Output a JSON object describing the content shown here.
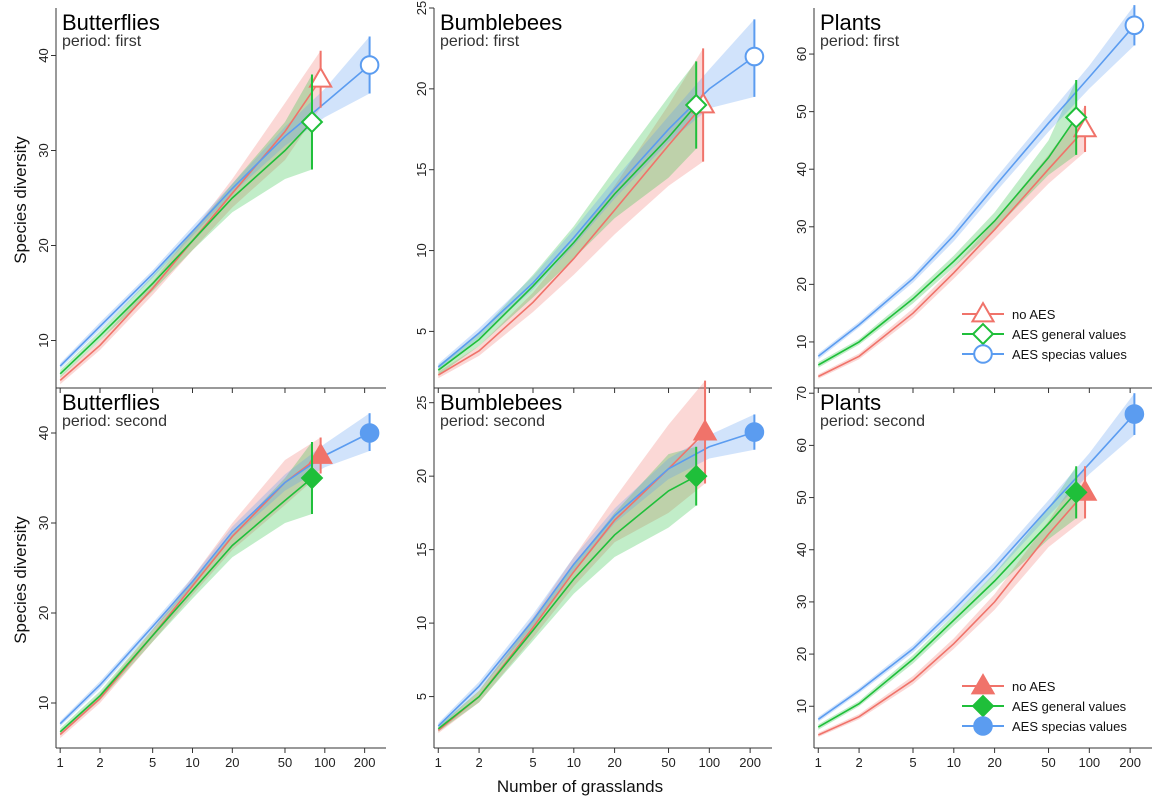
{
  "figure": {
    "xlabel": "Number of grasslands",
    "ylabel": "Species diversity",
    "colors": {
      "no_aes": "#f0736a",
      "aes_general": "#1fbf3a",
      "aes_special": "#5b9cf0"
    }
  },
  "legend_first": [
    {
      "label": "no AES",
      "marker": "triangle-open",
      "color": "#f0736a"
    },
    {
      "label": "AES general values",
      "marker": "diamond-open",
      "color": "#1fbf3a"
    },
    {
      "label": "AES specias values",
      "marker": "circle-open",
      "color": "#5b9cf0"
    }
  ],
  "legend_second": [
    {
      "label": "no AES",
      "marker": "triangle-filled",
      "color": "#f0736a"
    },
    {
      "label": "AES general values",
      "marker": "diamond-filled",
      "color": "#1fbf3a"
    },
    {
      "label": "AES specias values",
      "marker": "circle-filled",
      "color": "#5b9cf0"
    }
  ],
  "chart_data": [
    {
      "type": "line",
      "title": "Butterflies",
      "subtitle": "period: first",
      "xscale": "log",
      "xticks": [
        1,
        2,
        5,
        10,
        20,
        50,
        100,
        200
      ],
      "ylim": [
        5,
        45
      ],
      "yticks": [
        10,
        20,
        30,
        40
      ],
      "series": [
        {
          "name": "no AES",
          "x": [
            1,
            2,
            5,
            10,
            20,
            50,
            93
          ],
          "y": [
            5.8,
            9.5,
            15.5,
            20.5,
            25.5,
            32,
            37.5
          ],
          "lower": [
            5.4,
            9,
            14.8,
            19.5,
            24,
            29,
            34.5
          ],
          "upper": [
            6.2,
            10,
            16.2,
            21.5,
            27,
            35,
            40.5
          ],
          "endpoint": {
            "x": 93,
            "y": 37.5,
            "low": 34.5,
            "high": 40.5
          }
        },
        {
          "name": "AES general values",
          "x": [
            1,
            2,
            5,
            10,
            20,
            50,
            80
          ],
          "y": [
            6.5,
            10.5,
            16,
            20.5,
            25,
            30,
            33
          ],
          "lower": [
            6.1,
            10,
            15.2,
            19.5,
            23.5,
            27,
            28
          ],
          "upper": [
            6.9,
            11,
            16.8,
            21.5,
            26.5,
            33,
            38
          ],
          "endpoint": {
            "x": 80,
            "y": 33,
            "low": 28,
            "high": 38
          }
        },
        {
          "name": "AES specias values",
          "x": [
            1,
            2,
            5,
            10,
            20,
            50,
            100,
            218
          ],
          "y": [
            7.3,
            11.5,
            17,
            21.5,
            26,
            31.5,
            35,
            39
          ],
          "lower": [
            7,
            11.1,
            16.6,
            21,
            25.5,
            30.5,
            33.5,
            36
          ],
          "upper": [
            7.6,
            11.9,
            17.4,
            22,
            26.5,
            32.5,
            36.5,
            42
          ],
          "endpoint": {
            "x": 218,
            "y": 39,
            "low": 36,
            "high": 42
          }
        }
      ]
    },
    {
      "type": "line",
      "title": "Bumblebees",
      "subtitle": "period: first",
      "xscale": "log",
      "xticks": [
        1,
        2,
        5,
        10,
        20,
        50,
        100,
        200
      ],
      "ylim": [
        1.5,
        25
      ],
      "yticks": [
        5,
        10,
        15,
        20,
        25
      ],
      "series": [
        {
          "name": "no AES",
          "x": [
            1,
            2,
            5,
            10,
            20,
            50,
            90
          ],
          "y": [
            2.3,
            3.8,
            6.8,
            9.5,
            12.5,
            16.5,
            19
          ],
          "lower": [
            2.1,
            3.5,
            6.2,
            8.5,
            11,
            14,
            15.5
          ],
          "upper": [
            2.5,
            4.1,
            7.4,
            10.5,
            14,
            19,
            22.5
          ],
          "endpoint": {
            "x": 90,
            "y": 19,
            "low": 15.5,
            "high": 22.5
          }
        },
        {
          "name": "AES general values",
          "x": [
            1,
            2,
            5,
            10,
            20,
            50,
            80
          ],
          "y": [
            2.6,
            4.5,
            7.8,
            10.5,
            13.5,
            17,
            19
          ],
          "lower": [
            2.3,
            4.1,
            7.1,
            9.5,
            12,
            14.5,
            16.3
          ],
          "upper": [
            2.9,
            4.9,
            8.5,
            11.5,
            15,
            19.5,
            21.7
          ],
          "endpoint": {
            "x": 80,
            "y": 19,
            "low": 16.3,
            "high": 21.7
          }
        },
        {
          "name": "AES specias values",
          "x": [
            1,
            2,
            5,
            10,
            20,
            50,
            100,
            215
          ],
          "y": [
            2.8,
            4.9,
            8,
            10.8,
            13.8,
            17.5,
            20,
            22
          ],
          "lower": [
            2.6,
            4.6,
            7.6,
            10.3,
            13.2,
            16.7,
            18.8,
            19.5
          ],
          "upper": [
            3,
            5.2,
            8.4,
            11.3,
            14.4,
            18.3,
            21.2,
            24.3
          ],
          "endpoint": {
            "x": 215,
            "y": 22,
            "low": 19.5,
            "high": 24.3
          }
        }
      ]
    },
    {
      "type": "line",
      "title": "Plants",
      "subtitle": "period: first",
      "xscale": "log",
      "xticks": [
        1,
        2,
        5,
        10,
        20,
        50,
        100,
        200
      ],
      "ylim": [
        2,
        68
      ],
      "yticks": [
        10,
        20,
        30,
        40,
        50,
        60
      ],
      "series": [
        {
          "name": "no AES",
          "x": [
            1,
            2,
            5,
            10,
            20,
            50,
            93
          ],
          "y": [
            4,
            7.5,
            15,
            22,
            29.5,
            40,
            47
          ],
          "lower": [
            3.6,
            7,
            14.2,
            21,
            28,
            37.5,
            43
          ],
          "upper": [
            4.4,
            8,
            15.8,
            23,
            31,
            42.5,
            51
          ],
          "endpoint": {
            "x": 93,
            "y": 47,
            "low": 43,
            "high": 51
          }
        },
        {
          "name": "AES general values",
          "x": [
            1,
            2,
            5,
            10,
            20,
            50,
            80
          ],
          "y": [
            6,
            10,
            17.5,
            24,
            31,
            42,
            49
          ],
          "lower": [
            5.5,
            9.5,
            16.7,
            23,
            29.5,
            39,
            42.5
          ],
          "upper": [
            6.5,
            10.5,
            18.3,
            25,
            32.5,
            45,
            55.5
          ],
          "endpoint": {
            "x": 80,
            "y": 49,
            "low": 42.5,
            "high": 55.5
          }
        },
        {
          "name": "AES specias values",
          "x": [
            1,
            2,
            5,
            10,
            20,
            50,
            100,
            215
          ],
          "y": [
            7.5,
            13,
            21,
            28.5,
            37,
            48,
            56,
            65
          ],
          "lower": [
            7,
            12.5,
            20.3,
            27.5,
            35.8,
            46.5,
            54,
            61.5
          ],
          "upper": [
            8,
            13.5,
            21.7,
            29.5,
            38.2,
            49.5,
            58,
            68.5
          ],
          "endpoint": {
            "x": 215,
            "y": 65,
            "low": 61.5,
            "high": 68.5
          }
        }
      ]
    },
    {
      "type": "line",
      "title": "Butterflies",
      "subtitle": "period: second",
      "xscale": "log",
      "xticks": [
        1,
        2,
        5,
        10,
        20,
        50,
        100,
        200
      ],
      "ylim": [
        5,
        45
      ],
      "yticks": [
        10,
        20,
        30,
        40
      ],
      "series": [
        {
          "name": "no AES",
          "x": [
            1,
            2,
            5,
            10,
            20,
            50,
            93
          ],
          "y": [
            6.5,
            10.5,
            17.5,
            23,
            28.5,
            34.5,
            37.5
          ],
          "lower": [
            6.1,
            10,
            16.8,
            22,
            27,
            32,
            35.5
          ],
          "upper": [
            6.9,
            11,
            18.2,
            24,
            30,
            37,
            39.5
          ],
          "endpoint": {
            "x": 93,
            "y": 37.5,
            "low": 35.5,
            "high": 39.5
          }
        },
        {
          "name": "AES general values",
          "x": [
            1,
            2,
            5,
            10,
            20,
            50,
            80
          ],
          "y": [
            6.8,
            10.8,
            17.5,
            22.5,
            27.5,
            32.5,
            35
          ],
          "lower": [
            6.4,
            10.3,
            16.8,
            21.6,
            26.2,
            30,
            31
          ],
          "upper": [
            7.2,
            11.3,
            18.2,
            23.4,
            28.8,
            35,
            39
          ],
          "endpoint": {
            "x": 80,
            "y": 35,
            "low": 31,
            "high": 39
          }
        },
        {
          "name": "AES specias values",
          "x": [
            1,
            2,
            5,
            10,
            20,
            50,
            100,
            218
          ],
          "y": [
            7.7,
            12,
            18.5,
            23.5,
            29,
            34.5,
            37.5,
            40
          ],
          "lower": [
            7.4,
            11.6,
            18.1,
            23,
            28.4,
            33.6,
            36.2,
            38
          ],
          "upper": [
            8,
            12.4,
            18.9,
            24,
            29.6,
            35.4,
            38.8,
            42.2
          ],
          "endpoint": {
            "x": 218,
            "y": 40,
            "low": 38,
            "high": 42.2
          }
        }
      ]
    },
    {
      "type": "line",
      "title": "Bumblebees",
      "subtitle": "period: second",
      "xscale": "log",
      "xticks": [
        1,
        2,
        5,
        10,
        20,
        50,
        100,
        200
      ],
      "ylim": [
        1.5,
        26
      ],
      "yticks": [
        5,
        10,
        15,
        20,
        25
      ],
      "series": [
        {
          "name": "no AES",
          "x": [
            1,
            2,
            5,
            10,
            20,
            50,
            93
          ],
          "y": [
            2.7,
            5,
            9.7,
            13.5,
            17,
            20.5,
            23
          ],
          "lower": [
            2.5,
            4.6,
            9,
            12.5,
            15.5,
            17.5,
            19.5
          ],
          "upper": [
            2.9,
            5.4,
            10.4,
            14.5,
            18.5,
            23.5,
            26.5
          ],
          "endpoint": {
            "x": 93,
            "y": 23,
            "low": 19.5,
            "high": 26.5
          }
        },
        {
          "name": "AES general values",
          "x": [
            1,
            2,
            5,
            10,
            20,
            50,
            80
          ],
          "y": [
            2.8,
            5,
            9.5,
            13,
            16,
            19,
            20
          ],
          "lower": [
            2.6,
            4.6,
            8.8,
            12,
            14.5,
            16.5,
            18
          ],
          "upper": [
            3,
            5.4,
            10.2,
            14,
            17.5,
            21.5,
            22
          ],
          "endpoint": {
            "x": 80,
            "y": 20,
            "low": 18,
            "high": 22
          }
        },
        {
          "name": "AES specias values",
          "x": [
            1,
            2,
            5,
            10,
            20,
            50,
            100,
            215
          ],
          "y": [
            3,
            5.7,
            10.2,
            14,
            17.3,
            20.5,
            22,
            23
          ],
          "lower": [
            2.8,
            5.4,
            9.8,
            13.5,
            16.8,
            19.8,
            21.2,
            21.8
          ],
          "upper": [
            3.2,
            6,
            10.6,
            14.5,
            17.8,
            21.2,
            22.8,
            24.2
          ],
          "endpoint": {
            "x": 215,
            "y": 23,
            "low": 21.8,
            "high": 24.2
          }
        }
      ]
    },
    {
      "type": "line",
      "title": "Plants",
      "subtitle": "period: second",
      "xscale": "log",
      "xticks": [
        1,
        2,
        5,
        10,
        20,
        50,
        100,
        200
      ],
      "ylim": [
        2,
        71
      ],
      "yticks": [
        10,
        20,
        30,
        40,
        50,
        60,
        70
      ],
      "series": [
        {
          "name": "no AES",
          "x": [
            1,
            2,
            5,
            10,
            20,
            50,
            93
          ],
          "y": [
            4.5,
            8,
            15,
            22,
            30,
            43,
            51
          ],
          "lower": [
            4.1,
            7.5,
            14.2,
            21,
            28.5,
            40.5,
            46
          ],
          "upper": [
            4.9,
            8.5,
            15.8,
            23,
            31.5,
            45.5,
            56
          ],
          "endpoint": {
            "x": 93,
            "y": 51,
            "low": 46,
            "high": 56
          }
        },
        {
          "name": "AES general values",
          "x": [
            1,
            2,
            5,
            10,
            20,
            50,
            80
          ],
          "y": [
            6,
            10.5,
            19,
            26.5,
            34,
            45,
            51
          ],
          "lower": [
            5.5,
            10,
            18.2,
            25.5,
            32.5,
            42,
            46
          ],
          "upper": [
            6.5,
            11,
            19.8,
            27.5,
            35.5,
            48,
            56
          ],
          "endpoint": {
            "x": 80,
            "y": 51,
            "low": 46,
            "high": 56
          }
        },
        {
          "name": "AES specias values",
          "x": [
            1,
            2,
            5,
            10,
            20,
            50,
            100,
            215
          ],
          "y": [
            7.5,
            13,
            21,
            28.5,
            36.5,
            48,
            56.5,
            66
          ],
          "lower": [
            7,
            12.5,
            20.3,
            27.5,
            35.3,
            46.5,
            54.5,
            62
          ],
          "upper": [
            8,
            13.5,
            21.7,
            29.5,
            37.7,
            49.5,
            58.5,
            70
          ],
          "endpoint": {
            "x": 215,
            "y": 66,
            "low": 62,
            "high": 70
          }
        }
      ]
    }
  ]
}
